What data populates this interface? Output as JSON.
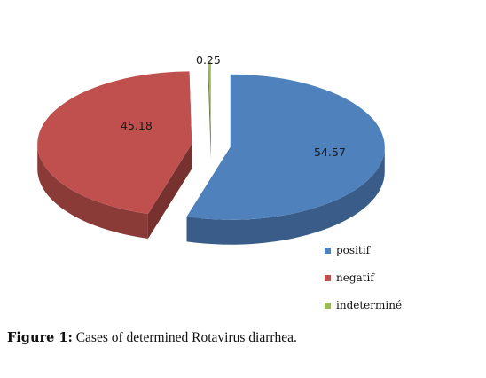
{
  "chart_data": {
    "type": "pie",
    "style": "3d-exploded",
    "slices": [
      {
        "label": "positif",
        "value": 54.57,
        "color": "#4f81bd"
      },
      {
        "label": "negatif",
        "value": 45.18,
        "color": "#c0504d"
      },
      {
        "label": "indeterminé",
        "value": 0.25,
        "color": "#9bbb59"
      }
    ],
    "data_labels": [
      "54.57",
      "45.18",
      "0.25"
    ],
    "legend_position": "bottom-right"
  },
  "caption": {
    "prefix": "Figure 1:",
    "text": " Cases of determined Rotavirus diarrhea."
  }
}
